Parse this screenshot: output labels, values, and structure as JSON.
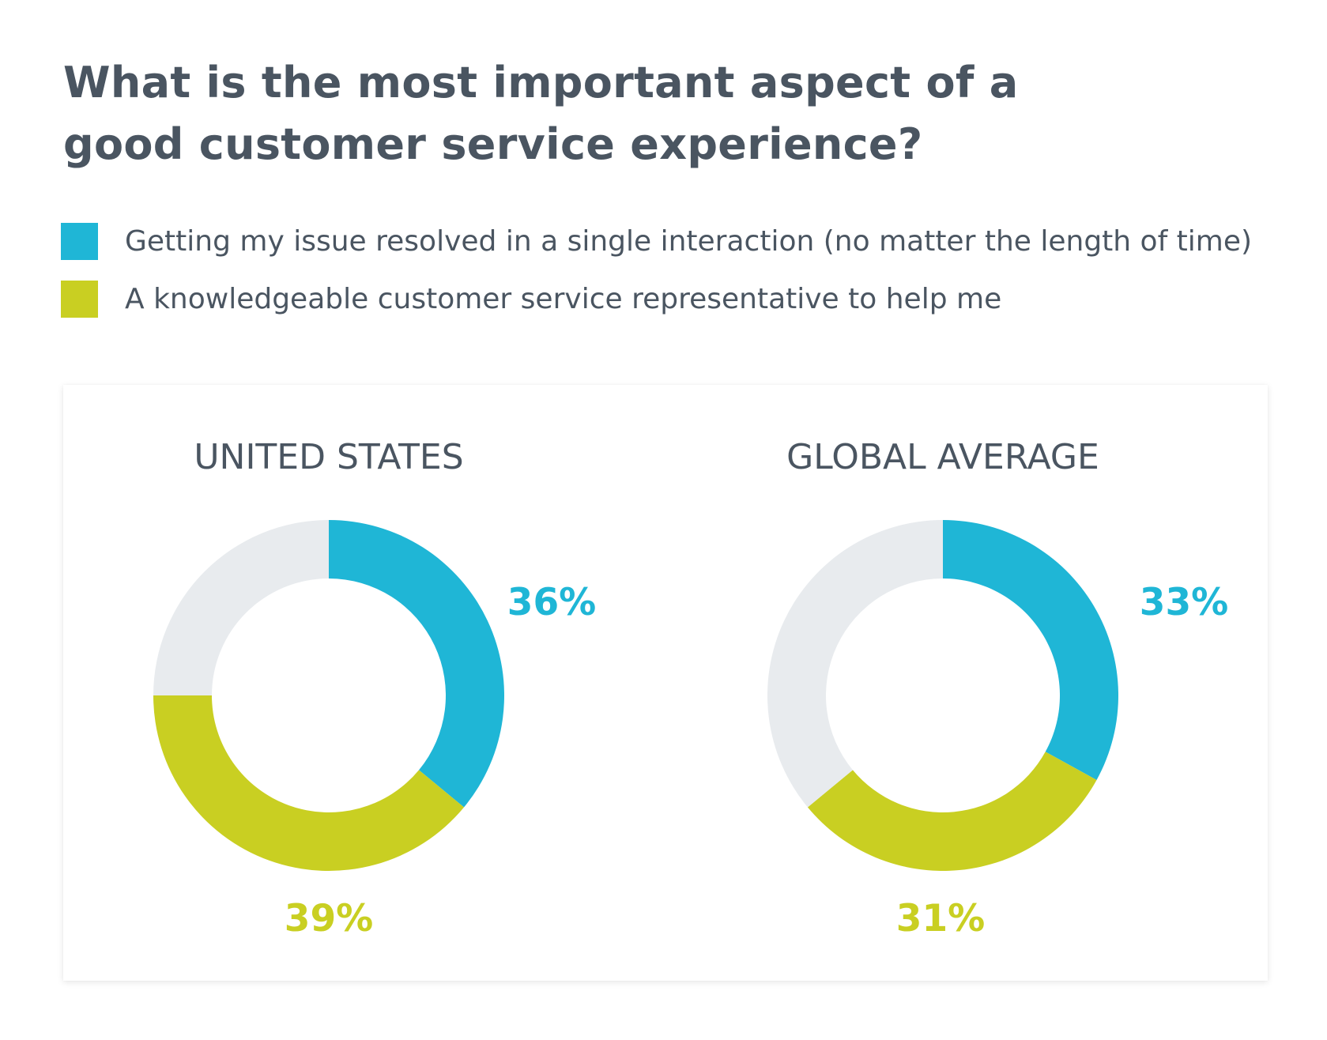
{
  "title_lines": [
    "What is the most important aspect of a",
    "good customer service experience?"
  ],
  "colors": {
    "resolved_single_interaction": "#1fb6d6",
    "knowledgeable_rep": "#c9cf22",
    "other": "#e8ebee",
    "text": "#4a5561"
  },
  "legend": [
    {
      "label": "Getting my issue resolved in a single interaction (no matter the length of time)",
      "color": "#1fb6d6"
    },
    {
      "label": "A knowledgeable customer service representative to help me",
      "color": "#c9cf22"
    }
  ],
  "chart_data": [
    {
      "type": "pie",
      "donut": true,
      "title": "UNITED STATES",
      "slices": [
        {
          "label": "Getting my issue resolved in a single interaction (no matter the length of time)",
          "value": 36,
          "display": "36%",
          "color": "#1fb6d6"
        },
        {
          "label": "A knowledgeable customer service representative to help me",
          "value": 39,
          "display": "39%",
          "color": "#c9cf22"
        },
        {
          "label": "",
          "value": 25,
          "display": "",
          "color": "#e8ebee"
        }
      ]
    },
    {
      "type": "pie",
      "donut": true,
      "title": "GLOBAL AVERAGE",
      "slices": [
        {
          "label": "Getting my issue resolved in a single interaction (no matter the length of time)",
          "value": 33,
          "display": "33%",
          "color": "#1fb6d6"
        },
        {
          "label": "A knowledgeable customer service representative to help me",
          "value": 31,
          "display": "31%",
          "color": "#c9cf22"
        },
        {
          "label": "",
          "value": 36,
          "display": "",
          "color": "#e8ebee"
        }
      ]
    }
  ]
}
